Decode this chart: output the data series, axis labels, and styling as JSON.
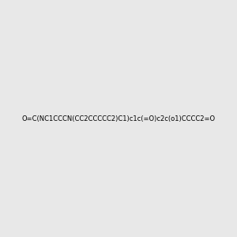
{
  "smiles": "O=C(NC1CCCN(CC2CCCCC2)C1)c1c(=O)c2c(o1)CCCC2=O",
  "image_size": 300,
  "background_color": "#e8e8e8"
}
